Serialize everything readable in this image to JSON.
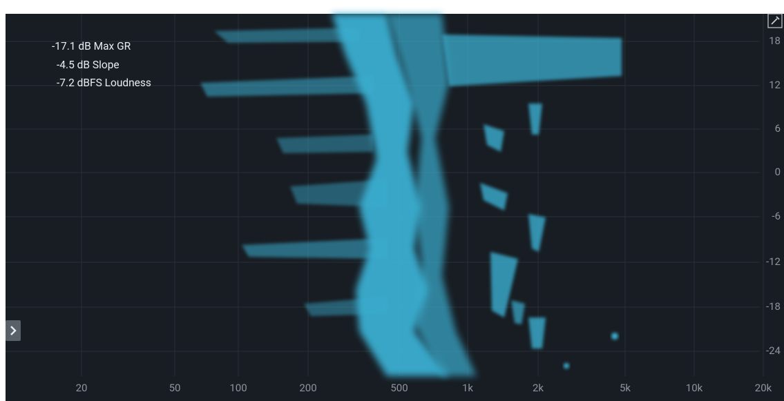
{
  "readouts": [
    "-17.1 dB Max GR",
    "-4.5 dB Slope",
    "-7.2 dBFS Loudness"
  ],
  "freq_labels": [
    "20",
    "50",
    "100",
    "200",
    "500",
    "1k",
    "2k",
    "5k",
    "10k",
    "20k"
  ],
  "db_labels": [
    "18",
    "12",
    "6",
    "0",
    "-6",
    "-12",
    "-18",
    "-24"
  ]
}
